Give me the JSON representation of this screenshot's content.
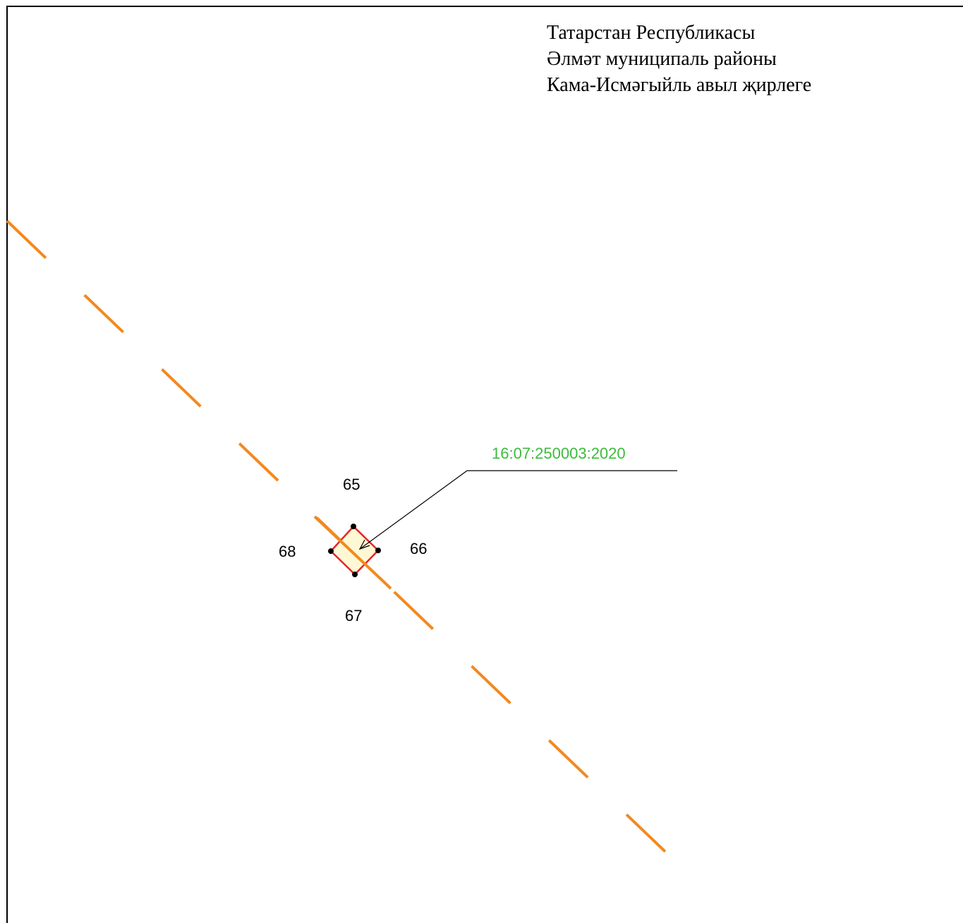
{
  "header": {
    "line1": "Татарстан Республикасы",
    "line2": "Әлмәт муниципаль районы",
    "line3": "Кама-Исмәгыйль авыл җирлеге"
  },
  "parcel": {
    "cadastral_number": "16:07:250003:2020",
    "cadastral_label_color": "#3dbb3d",
    "outline_color": "#e3262b",
    "fill_color": "#fff7cc"
  },
  "points": [
    {
      "id": "p65",
      "label": "65"
    },
    {
      "id": "p66",
      "label": "66"
    },
    {
      "id": "p67",
      "label": "67"
    },
    {
      "id": "p68",
      "label": "68"
    }
  ],
  "boundary_line": {
    "color": "#f2891f",
    "style": "dashed"
  }
}
